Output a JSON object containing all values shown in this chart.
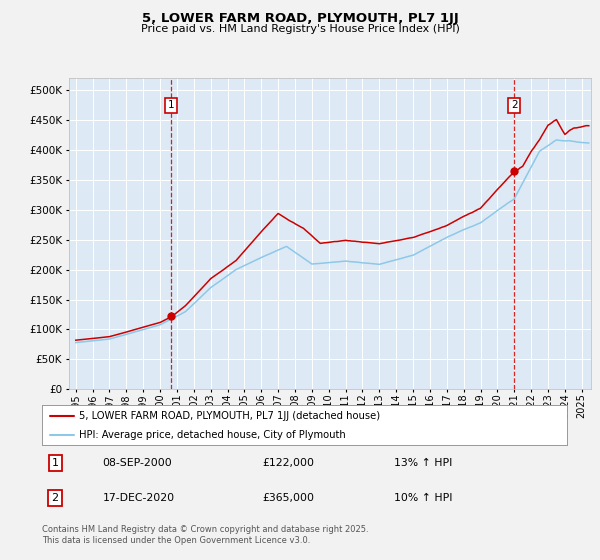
{
  "title": "5, LOWER FARM ROAD, PLYMOUTH, PL7 1JJ",
  "subtitle": "Price paid vs. HM Land Registry's House Price Index (HPI)",
  "legend_line1": "5, LOWER FARM ROAD, PLYMOUTH, PL7 1JJ (detached house)",
  "legend_line2": "HPI: Average price, detached house, City of Plymouth",
  "annotation1_date": "08-SEP-2000",
  "annotation1_price": "£122,000",
  "annotation1_hpi": "13% ↑ HPI",
  "annotation2_date": "17-DEC-2020",
  "annotation2_price": "£365,000",
  "annotation2_hpi": "10% ↑ HPI",
  "footnote": "Contains HM Land Registry data © Crown copyright and database right 2025.\nThis data is licensed under the Open Government Licence v3.0.",
  "hpi_color": "#8ec8e8",
  "price_color": "#cc0000",
  "vline_color": "#cc0000",
  "plot_bg_color": "#ddeaf5",
  "grid_color": "#ffffff",
  "fig_bg_color": "#f2f2f2",
  "ylim": [
    0,
    520000
  ],
  "yticks": [
    0,
    50000,
    100000,
    150000,
    200000,
    250000,
    300000,
    350000,
    400000,
    450000,
    500000
  ],
  "sale1_year": 2000.69,
  "sale1_value": 122000,
  "sale2_year": 2020.96,
  "sale2_value": 365000,
  "xmin": 1995,
  "xmax": 2025
}
